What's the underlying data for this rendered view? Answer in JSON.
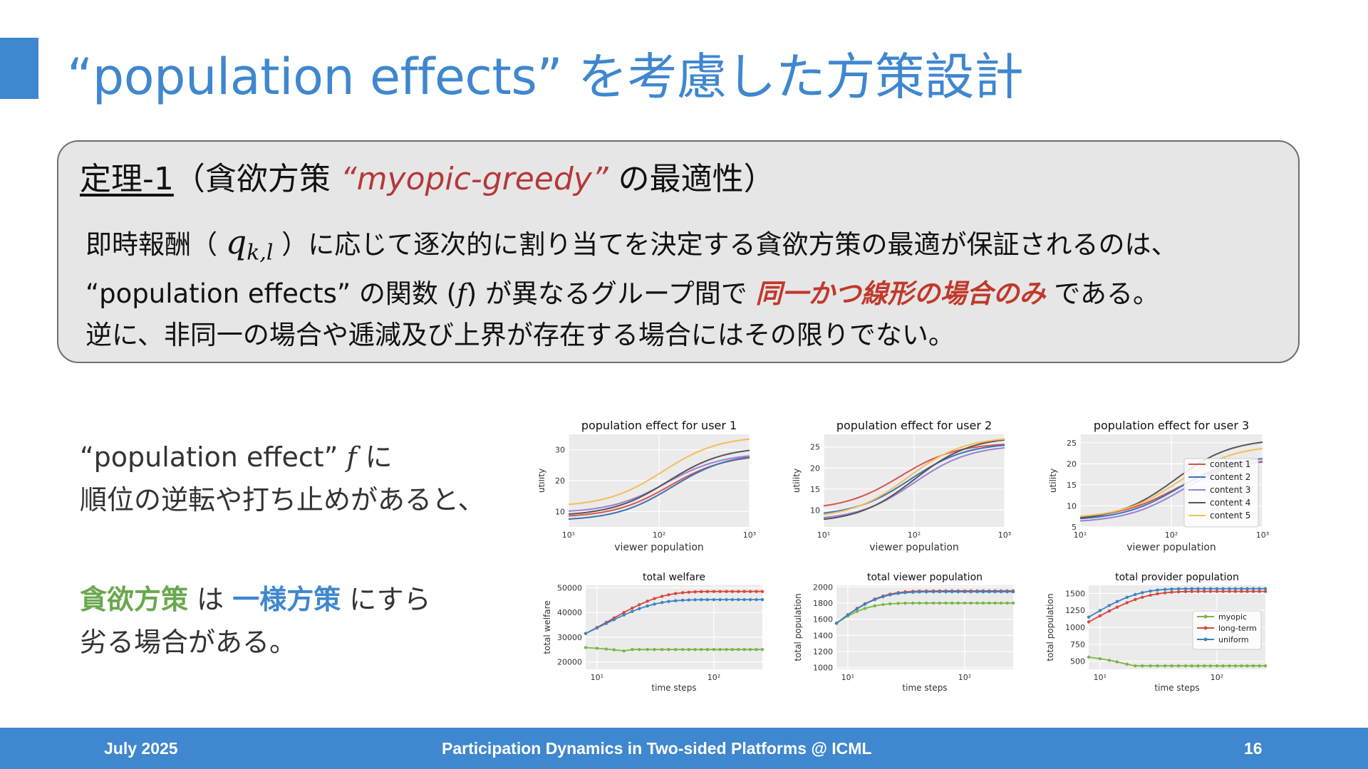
{
  "slide": {
    "title": "“population effects” を考慮した方策設計",
    "theorem": {
      "label": "定理-1",
      "paren_open": "（貪欲方策 ",
      "policy": "“myopic-greedy”",
      "paren_close": " の最適性）",
      "l1a": "即時報酬（ ",
      "q_sym": "q",
      "q_sub": "k,l",
      "l1b": " ）に応じて逐次的に割り当てを決定する貪欲方策の最適が保証されるのは、",
      "l2a": "“population effects” の関数 (",
      "f_sym": "f",
      "l2b": ") が異なるグループ間で ",
      "l2c": "同一かつ線形の場合のみ",
      "l2d": " である。",
      "l3": "逆に、非同一の場合や逓減及び上界が存在する場合にはその限りでない。"
    },
    "left": {
      "p1a": "“population effect” ",
      "f_sym": "f",
      "p1b": " に",
      "p1c": "順位の逆転や打ち止めがあると、",
      "p2a": "貪欲方策",
      "p2b": " は ",
      "p2c": "一様方策",
      "p2d": " にすら",
      "p2e": "劣る場合がある。"
    },
    "footer": {
      "date": "July 2025",
      "venue": "Participation Dynamics in Two-sided Platforms @ ICML",
      "page": "16"
    }
  },
  "colors": {
    "accent": "#3f87cf",
    "red": "#b5383a",
    "green": "#6aa84f",
    "c1": "#d9534f",
    "c2": "#3a73b8",
    "c3": "#9b7fd4",
    "c4": "#555555",
    "c5": "#f5bd5a",
    "myopic": "#7ab648",
    "longterm": "#d9473b",
    "uniform": "#3a84c4"
  },
  "chart_data": [
    {
      "type": "line",
      "title": "population effect for user 1",
      "xlabel": "viewer population",
      "ylabel": "utility",
      "xscale": "log",
      "xlim": [
        10,
        1000
      ],
      "ylim": [
        5,
        35
      ],
      "yticks": [
        10,
        20,
        30
      ],
      "xticklabels": [
        "10¹",
        "10²",
        "10³"
      ],
      "series": [
        {
          "name": "content 1",
          "low": 8,
          "high": 28.5,
          "mid": 130
        },
        {
          "name": "content 2",
          "low": 7,
          "high": 29,
          "mid": 140
        },
        {
          "name": "content 3",
          "low": 9.5,
          "high": 29,
          "mid": 120
        },
        {
          "name": "content 4",
          "low": 8.5,
          "high": 31,
          "mid": 125
        },
        {
          "name": "content 5",
          "low": 11.5,
          "high": 34.5,
          "mid": 110
        }
      ]
    },
    {
      "type": "line",
      "title": "population effect for user 2",
      "xlabel": "viewer population",
      "ylabel": "utility",
      "xscale": "log",
      "xlim": [
        10,
        1000
      ],
      "ylim": [
        6,
        28
      ],
      "yticks": [
        10,
        15,
        20,
        25
      ],
      "xticklabels": [
        "10¹",
        "10²",
        "10³"
      ],
      "series": [
        {
          "name": "content 1",
          "low": 10,
          "high": 26,
          "mid": 70
        },
        {
          "name": "content 2",
          "low": 8.5,
          "high": 26,
          "mid": 90
        },
        {
          "name": "content 3",
          "low": 7.5,
          "high": 25.5,
          "mid": 100
        },
        {
          "name": "content 4",
          "low": 7,
          "high": 27.5,
          "mid": 100
        },
        {
          "name": "content 5",
          "low": 8,
          "high": 27.5,
          "mid": 85
        }
      ]
    },
    {
      "type": "line",
      "title": "population effect for user 3",
      "xlabel": "viewer population",
      "ylabel": "utility",
      "xscale": "log",
      "xlim": [
        10,
        1000
      ],
      "ylim": [
        5,
        27
      ],
      "yticks": [
        5,
        10,
        15,
        20,
        25
      ],
      "xticklabels": [
        "10¹",
        "10²",
        "10³"
      ],
      "legend": "right",
      "series": [
        {
          "name": "content 1",
          "low": 7,
          "high": 21,
          "mid": 110
        },
        {
          "name": "content 2",
          "low": 6.5,
          "high": 22,
          "mid": 120
        },
        {
          "name": "content 3",
          "low": 6,
          "high": 21.5,
          "mid": 130
        },
        {
          "name": "content 4",
          "low": 6.5,
          "high": 26,
          "mid": 110
        },
        {
          "name": "content 5",
          "low": 7,
          "high": 24.5,
          "mid": 120
        }
      ]
    },
    {
      "type": "line",
      "title": "total welfare",
      "xlabel": "time steps",
      "ylabel": "total welfare",
      "xscale": "log",
      "xlim": [
        8,
        260
      ],
      "ylim": [
        17000,
        51000
      ],
      "yticks": [
        20000,
        30000,
        40000,
        50000
      ],
      "xticklabels": [
        "10¹",
        "10²"
      ],
      "series": [
        {
          "name": "myopic",
          "start": 25800,
          "dip": 24000,
          "end": 25000
        },
        {
          "name": "long-term",
          "start": 31500,
          "end": 48500,
          "rate": 0.035
        },
        {
          "name": "uniform",
          "start": 31500,
          "end": 45200,
          "rate": 0.04
        }
      ]
    },
    {
      "type": "line",
      "title": "total viewer population",
      "xlabel": "time steps",
      "ylabel": "total population",
      "xscale": "log",
      "xlim": [
        8,
        260
      ],
      "ylim": [
        980,
        2020
      ],
      "yticks": [
        1000,
        1200,
        1400,
        1600,
        1800,
        2000
      ],
      "xticklabels": [
        "10¹",
        "10²"
      ],
      "series": [
        {
          "name": "myopic",
          "start": 1550,
          "end": 1800,
          "rate": 0.1
        },
        {
          "name": "long-term",
          "start": 1550,
          "end": 1950,
          "rate": 0.07
        },
        {
          "name": "uniform",
          "start": 1550,
          "end": 1940,
          "rate": 0.07
        }
      ]
    },
    {
      "type": "line",
      "title": "total provider population",
      "xlabel": "time steps",
      "ylabel": "total population",
      "xscale": "log",
      "xlim": [
        8,
        260
      ],
      "ylim": [
        380,
        1620
      ],
      "yticks": [
        500,
        750,
        1000,
        1250,
        1500
      ],
      "xticklabels": [
        "10¹",
        "10²"
      ],
      "legend": "right",
      "series": [
        {
          "name": "myopic",
          "start": 560,
          "dip": 420,
          "end": 430
        },
        {
          "name": "long-term",
          "start": 1080,
          "end": 1530,
          "rate": 0.05
        },
        {
          "name": "uniform",
          "start": 1150,
          "end": 1570,
          "rate": 0.06
        }
      ]
    }
  ]
}
